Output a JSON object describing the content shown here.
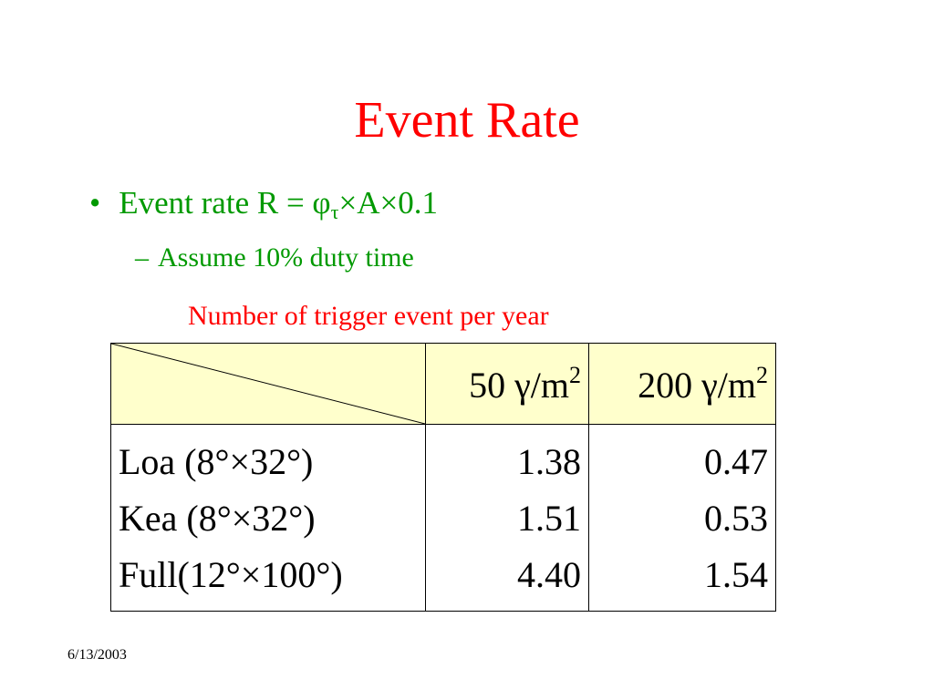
{
  "slide": {
    "title": "Event Rate",
    "bullet": {
      "marker": "•",
      "text_prefix": "Event rate R = φ",
      "subscript": "τ",
      "text_suffix": "×A×0.1"
    },
    "subbullet": {
      "marker": "–",
      "text": "Assume 10% duty time"
    },
    "table_caption": "Number of trigger event per year",
    "table": {
      "columns": [
        {
          "base": "50 γ/m",
          "sup": "2"
        },
        {
          "base": "200 γ/m",
          "sup": "2"
        }
      ],
      "rows": [
        {
          "label": "Loa (8°×32°)",
          "values": [
            "1.38",
            "0.47"
          ]
        },
        {
          "label": "Kea (8°×32°)",
          "values": [
            "1.51",
            "0.53"
          ]
        },
        {
          "label": "Full(12°×100°)",
          "values": [
            "4.40",
            "1.54"
          ]
        }
      ]
    },
    "footer_date": "6/13/2003",
    "colors": {
      "title": "#ff0000",
      "bullet_text": "#009900",
      "caption": "#ff0000",
      "header_fill": "#ffffcc"
    }
  }
}
